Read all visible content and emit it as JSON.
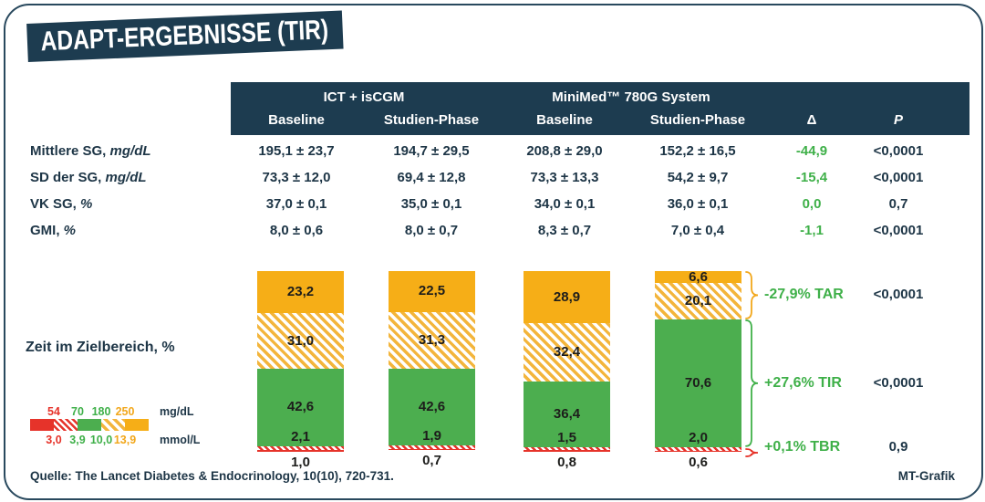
{
  "title": "ADAPT-ERGEBNISSE (TIR)",
  "colors": {
    "navy": "#1d3c50",
    "green": "#4cae4f",
    "green_text": "#3fb049",
    "orange": "#f6ae17",
    "red": "#e6332a"
  },
  "table": {
    "groups": [
      {
        "label": "ICT + isCGM"
      },
      {
        "label": "MiniMed™ 780G System"
      }
    ],
    "columns": [
      "Baseline",
      "Studien-Phase",
      "Baseline",
      "Studien-Phase",
      "Δ",
      "P"
    ],
    "rows": [
      {
        "label": "Mittlere SG,",
        "unit": "mg/dL",
        "values": [
          "195,1 ± 23,7",
          "194,7 ± 29,5",
          "208,8 ± 29,0",
          "152,2 ± 16,5"
        ],
        "delta": "-44,9",
        "p": "<0,0001"
      },
      {
        "label": "SD der SG,",
        "unit": "mg/dL",
        "values": [
          "73,3 ± 12,0",
          "69,4 ± 12,8",
          "73,3 ± 13,3",
          "54,2 ± 9,7"
        ],
        "delta": "-15,4",
        "p": "<0,0001"
      },
      {
        "label": "VK SG,",
        "unit": "%",
        "values": [
          "37,0 ± 0,1",
          "35,0 ± 0,1",
          "34,0 ± 0,1",
          "36,0 ± 0,1"
        ],
        "delta": "0,0",
        "p": "0,7"
      },
      {
        "label": "GMI,",
        "unit": "%",
        "values": [
          "8,0 ± 0,6",
          "8,0 ± 0,7",
          "8,3 ± 0,7",
          "7,0 ± 0,4"
        ],
        "delta": "-1,1",
        "p": "<0,0001"
      }
    ]
  },
  "chart_data": {
    "type": "bar",
    "stacked": true,
    "ylabel": "Zeit im Zielbereich, %",
    "ylim": [
      0,
      100
    ],
    "categories": [
      "ICT + isCGM Baseline",
      "ICT + isCGM Studien-Phase",
      "MiniMed 780G Baseline",
      "MiniMed 780G Studien-Phase"
    ],
    "series": [
      {
        "name": "TAR >250 mg/dL",
        "style": "orange-solid",
        "values": [
          23.2,
          22.5,
          28.9,
          6.6
        ],
        "display": [
          "23,2",
          "22,5",
          "28,9",
          "6,6"
        ]
      },
      {
        "name": "TAR 180-250 mg/dL",
        "style": "orange-hatched",
        "values": [
          31.0,
          31.3,
          32.4,
          20.1
        ],
        "display": [
          "31,0",
          "31,3",
          "32,4",
          "20,1"
        ]
      },
      {
        "name": "TIR 70-180 mg/dL",
        "style": "green-solid",
        "values": [
          42.6,
          42.6,
          36.4,
          70.6
        ],
        "display": [
          "42,6",
          "42,6",
          "36,4",
          "70,6"
        ]
      },
      {
        "name": "TBR 54-70 mg/dL",
        "style": "red-hatched",
        "values": [
          2.1,
          1.9,
          1.5,
          2.0
        ],
        "display": [
          "2,1",
          "1,9",
          "1,5",
          "2,0"
        ]
      },
      {
        "name": "TBR <54 mg/dL",
        "style": "red-solid",
        "values": [
          1.0,
          0.7,
          0.8,
          0.6
        ],
        "display": [
          "1,0",
          "0,7",
          "0,8",
          "0,6"
        ]
      }
    ],
    "annotations": [
      {
        "text": "-27,9% TAR",
        "p": "<0,0001",
        "brace": "orange"
      },
      {
        "text": "+27,6% TIR",
        "p": "<0,0001",
        "brace": "green"
      },
      {
        "text": "+0,1% TBR",
        "p": "0,9",
        "brace": "red"
      }
    ],
    "legend": {
      "mg_values": [
        "54",
        "70",
        "180",
        "250"
      ],
      "mg_unit": "mg/dL",
      "mmol_values": [
        "3,0",
        "3,9",
        "10,0",
        "13,9"
      ],
      "mmol_unit": "mmol/L",
      "threshold_colors": [
        "red",
        "green",
        "green",
        "orange"
      ],
      "swatches": [
        "red-solid",
        "red-hatched",
        "green-solid",
        "orange-hatched",
        "orange-solid"
      ]
    }
  },
  "footer": {
    "source": "Quelle: The Lancet Diabetes & Endocrinology, 10(10), 720-731.",
    "credit": "MT-Grafik"
  }
}
